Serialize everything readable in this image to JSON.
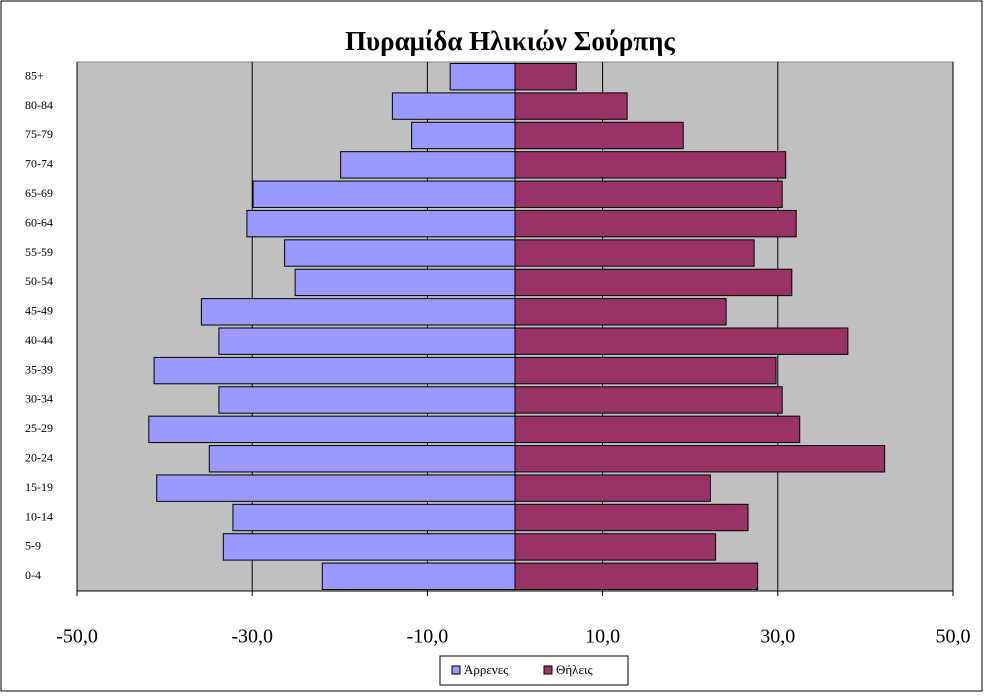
{
  "chart_data": {
    "type": "pyramid",
    "title": "Πυραμίδα Ηλικιών Σούρπης",
    "categories": [
      "0-4",
      "5-9",
      "10-14",
      "15-19",
      "20-24",
      "25-29",
      "30-34",
      "35-39",
      "40-44",
      "45-49",
      "50-54",
      "55-59",
      "60-64",
      "65-69",
      "70-74",
      "75-79",
      "80-84",
      "85+"
    ],
    "series": [
      {
        "name": "Άρρενες",
        "color": "#9999ff",
        "values": [
          -22.0,
          -33.3,
          -32.2,
          -40.9,
          -34.9,
          -41.8,
          -33.8,
          -41.2,
          -33.8,
          -35.8,
          -25.1,
          -26.3,
          -30.6,
          -29.9,
          -19.9,
          -11.8,
          -14.0,
          -7.4
        ]
      },
      {
        "name": "Θήλεις",
        "color": "#993366",
        "values": [
          27.7,
          22.9,
          26.6,
          22.3,
          42.2,
          32.5,
          30.5,
          29.8,
          38.0,
          24.1,
          31.6,
          27.3,
          32.1,
          30.5,
          30.9,
          19.2,
          12.8,
          7.0
        ]
      }
    ],
    "xlim": [
      -50,
      50
    ],
    "xticks": [
      {
        "value": -50,
        "label": "-50,0"
      },
      {
        "value": -30,
        "label": "-30,0"
      },
      {
        "value": -10,
        "label": "-10,0"
      },
      {
        "value": 10,
        "label": "10,0"
      },
      {
        "value": 30,
        "label": "30,0"
      },
      {
        "value": 50,
        "label": "50,0"
      }
    ],
    "grid": true,
    "legend": "bottom"
  }
}
